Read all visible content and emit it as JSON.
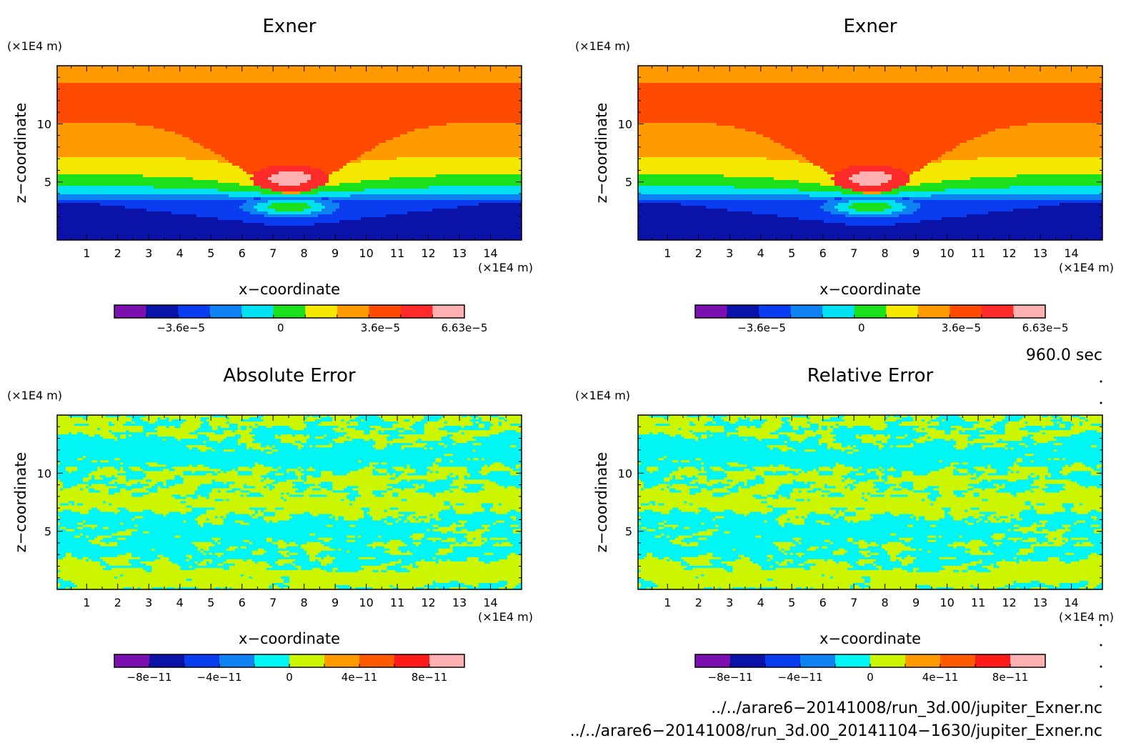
{
  "chart_data": [
    {
      "type": "heatmap",
      "title": "Exner",
      "xlabel": "x−coordinate",
      "ylabel": "z−coordinate",
      "x_unit": "(×1E4 m)",
      "y_unit": "(×1E4 m)",
      "xlim": [
        0.05,
        15.0
      ],
      "ylim": [
        0.0,
        15.0
      ],
      "x_ticks": [
        "1",
        "2",
        "3",
        "4",
        "5",
        "6",
        "7",
        "8",
        "9",
        "10",
        "11",
        "12",
        "13",
        "14"
      ],
      "y_ticks": [
        "5",
        "10"
      ],
      "field": "exner",
      "colorbar": {
        "colors": [
          "#7b0fb0",
          "#0a12a8",
          "#0a3cf0",
          "#0d82f0",
          "#00e0f0",
          "#1de01d",
          "#f5e800",
          "#ff9b00",
          "#ff4a00",
          "#ff2a2a",
          "#ffb0b0"
        ],
        "tick_labels": [
          "−3.6e−5",
          "0",
          "3.6e−5",
          "6.63e−5"
        ]
      }
    },
    {
      "type": "heatmap",
      "title": "Exner",
      "xlabel": "x−coordinate",
      "ylabel": "z−coordinate",
      "x_unit": "(×1E4 m)",
      "y_unit": "(×1E4 m)",
      "xlim": [
        0.05,
        15.0
      ],
      "ylim": [
        0.0,
        15.0
      ],
      "x_ticks": [
        "1",
        "2",
        "3",
        "4",
        "5",
        "6",
        "7",
        "8",
        "9",
        "10",
        "11",
        "12",
        "13",
        "14"
      ],
      "y_ticks": [
        "5",
        "10"
      ],
      "field": "exner",
      "colorbar": {
        "colors": [
          "#7b0fb0",
          "#0a12a8",
          "#0a3cf0",
          "#0d82f0",
          "#00e0f0",
          "#1de01d",
          "#f5e800",
          "#ff9b00",
          "#ff4a00",
          "#ff2a2a",
          "#ffb0b0"
        ],
        "tick_labels": [
          "−3.6e−5",
          "0",
          "3.6e−5",
          "6.63e−5"
        ]
      }
    },
    {
      "type": "heatmap",
      "title": "Absolute Error",
      "xlabel": "x−coordinate",
      "ylabel": "z−coordinate",
      "x_unit": "(×1E4 m)",
      "y_unit": "(×1E4 m)",
      "xlim": [
        0.05,
        15.0
      ],
      "ylim": [
        0.0,
        15.0
      ],
      "x_ticks": [
        "1",
        "2",
        "3",
        "4",
        "5",
        "6",
        "7",
        "8",
        "9",
        "10",
        "11",
        "12",
        "13",
        "14"
      ],
      "y_ticks": [
        "5",
        "10"
      ],
      "field": "noise",
      "colorbar": {
        "colors": [
          "#7b0fb0",
          "#0a12a8",
          "#0a3cf0",
          "#0d82f0",
          "#00f5f5",
          "#ccf500",
          "#ff9b00",
          "#ff5a00",
          "#ff1a1a",
          "#ffb0b0"
        ],
        "tick_labels": [
          "−8e−11",
          "−4e−11",
          "0",
          "4e−11",
          "8e−11"
        ]
      }
    },
    {
      "type": "heatmap",
      "title": "Relative Error",
      "xlabel": "x−coordinate",
      "ylabel": "z−coordinate",
      "x_unit": "(×1E4 m)",
      "y_unit": "(×1E4 m)",
      "xlim": [
        0.05,
        15.0
      ],
      "ylim": [
        0.0,
        15.0
      ],
      "x_ticks": [
        "1",
        "2",
        "3",
        "4",
        "5",
        "6",
        "7",
        "8",
        "9",
        "10",
        "11",
        "12",
        "13",
        "14"
      ],
      "y_ticks": [
        "5",
        "10"
      ],
      "field": "noise",
      "colorbar": {
        "colors": [
          "#7b0fb0",
          "#0a12a8",
          "#0a3cf0",
          "#0d82f0",
          "#00f5f5",
          "#ccf500",
          "#ff9b00",
          "#ff5a00",
          "#ff1a1a",
          "#ffb0b0"
        ],
        "tick_labels": [
          "−8e−11",
          "−4e−11",
          "0",
          "4e−11",
          "8e−11"
        ]
      }
    }
  ],
  "annotations": {
    "time": "960.0 sec",
    "file1": "../../arare6−20141008/run_3d.00/jupiter_Exner.nc",
    "file2": "../../arare6−20141008/run_3d.00_20141104−1630/jupiter_Exner.nc"
  }
}
